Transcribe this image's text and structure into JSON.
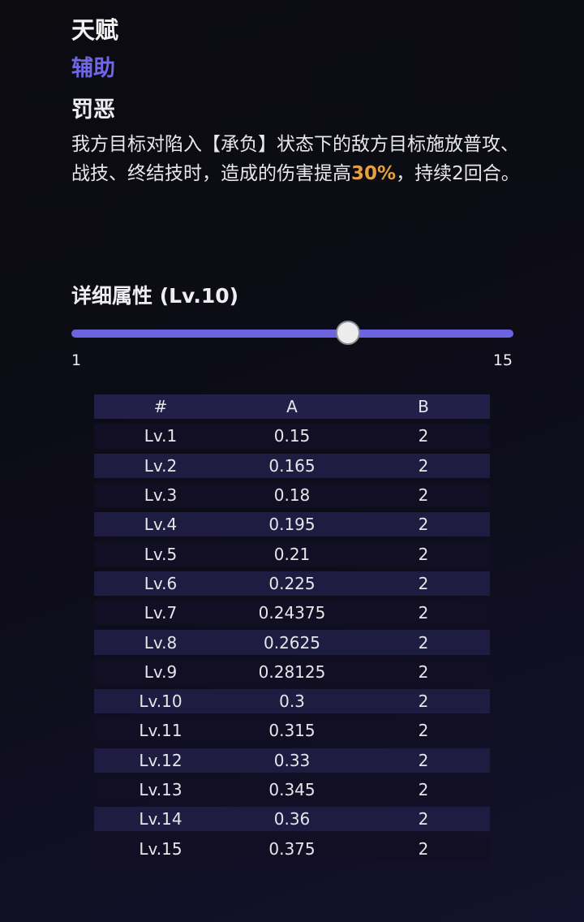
{
  "talent": {
    "heading": "天赋",
    "tag": "辅助",
    "name": "罚恶",
    "desc_before": "我方目标对陷入【承负】状态下的敌方目标施放普攻、战技、终结技时，造成的伤害提高",
    "desc_highlight": "30%",
    "desc_after": "，持续2回合。"
  },
  "colors": {
    "accent": "#6b63e0",
    "highlight": "#e7a040"
  },
  "detail": {
    "title": "详细属性 (Lv.10)",
    "slider": {
      "min": "1",
      "max": "15",
      "value": 10
    }
  },
  "table": {
    "headers": [
      "#",
      "A",
      "B"
    ],
    "rows": [
      [
        "Lv.1",
        "0.15",
        "2"
      ],
      [
        "Lv.2",
        "0.165",
        "2"
      ],
      [
        "Lv.3",
        "0.18",
        "2"
      ],
      [
        "Lv.4",
        "0.195",
        "2"
      ],
      [
        "Lv.5",
        "0.21",
        "2"
      ],
      [
        "Lv.6",
        "0.225",
        "2"
      ],
      [
        "Lv.7",
        "0.24375",
        "2"
      ],
      [
        "Lv.8",
        "0.2625",
        "2"
      ],
      [
        "Lv.9",
        "0.28125",
        "2"
      ],
      [
        "Lv.10",
        "0.3",
        "2"
      ],
      [
        "Lv.11",
        "0.315",
        "2"
      ],
      [
        "Lv.12",
        "0.33",
        "2"
      ],
      [
        "Lv.13",
        "0.345",
        "2"
      ],
      [
        "Lv.14",
        "0.36",
        "2"
      ],
      [
        "Lv.15",
        "0.375",
        "2"
      ]
    ]
  }
}
